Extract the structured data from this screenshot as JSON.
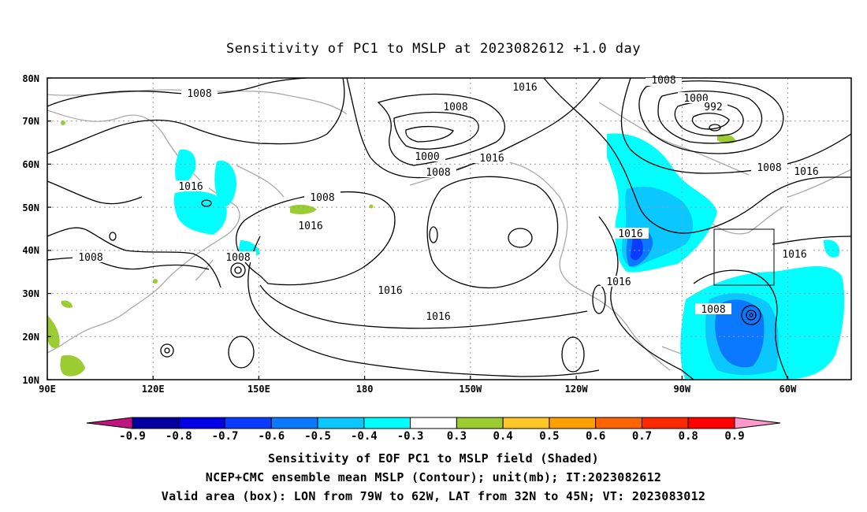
{
  "title": "Sensitivity of PC1 to MSLP at 2023082612 +1.0 day",
  "map": {
    "lat_ticks": [
      "80N",
      "70N",
      "60N",
      "50N",
      "40N",
      "30N",
      "20N",
      "10N"
    ],
    "lon_ticks": [
      "90E",
      "120E",
      "150E",
      "180",
      "150W",
      "120W",
      "90W",
      "60W"
    ],
    "contour_labels": [
      "1008",
      "1016",
      "1008",
      "1000",
      "992",
      "1008",
      "1016",
      "1016",
      "1008",
      "1000",
      "1008",
      "1016",
      "1008",
      "1016",
      "1016",
      "1008",
      "1016",
      "1016",
      "1016",
      "1016",
      "1008",
      "1008"
    ],
    "valid_box": {
      "lon_min": -79,
      "lon_max": -62,
      "lat_min": 32,
      "lat_max": 45
    },
    "land_color": "#a9a9a9"
  },
  "colorbar": {
    "labels": [
      "-0.9",
      "-0.8",
      "-0.7",
      "-0.6",
      "-0.5",
      "-0.4",
      "-0.3",
      "0.3",
      "0.4",
      "0.5",
      "0.6",
      "0.7",
      "0.8",
      "0.9"
    ],
    "colors": [
      "#c2137f",
      "#0000a0",
      "#0000e6",
      "#0a3cff",
      "#0a78ff",
      "#0ac8ff",
      "#00ffff",
      "#ffffff",
      "#9bcd32",
      "#ffc828",
      "#ffa000",
      "#ff6400",
      "#ff2800",
      "#ff0000",
      "#ff99cc"
    ]
  },
  "captions": {
    "line1": "Sensitivity of EOF PC1 to MSLP field (Shaded)",
    "line2": "NCEP+CMC ensemble mean MSLP (Contour); unit(mb); IT:2023082612",
    "line3": "Valid area (box): LON from 79W to 62W, LAT from 32N to 45N; VT: 2023083012"
  }
}
